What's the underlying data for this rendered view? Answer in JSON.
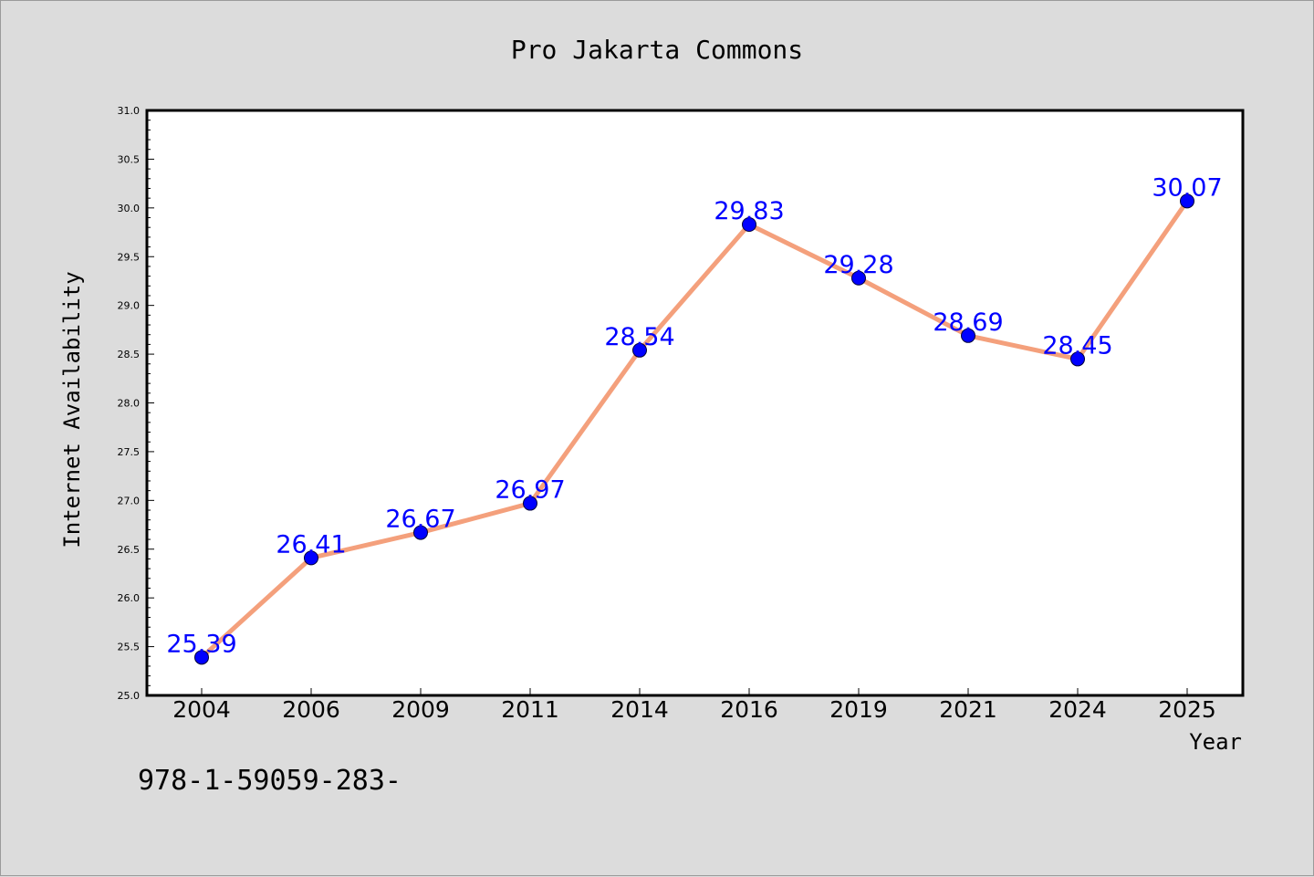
{
  "chart_data": {
    "type": "line",
    "title": "Pro Jakarta Commons",
    "xlabel": "Year",
    "ylabel": "Internet Availability",
    "categories": [
      "2004",
      "2006",
      "2009",
      "2011",
      "2014",
      "2016",
      "2019",
      "2021",
      "2024",
      "2025"
    ],
    "values": [
      25.39,
      26.41,
      26.67,
      26.97,
      28.54,
      29.83,
      29.28,
      28.69,
      28.45,
      30.07
    ],
    "data_labels": [
      "25.39",
      "26.41",
      "26.67",
      "26.97",
      "28.54",
      "29.83",
      "29.28",
      "28.69",
      "28.45",
      "30.07"
    ],
    "ylim": [
      25.0,
      31.0
    ],
    "yticks": [
      "25.0",
      "25.5",
      "26.0",
      "26.5",
      "27.0",
      "27.5",
      "28.0",
      "28.5",
      "29.0",
      "29.5",
      "30.0",
      "30.5",
      "31.0"
    ],
    "grid": false,
    "legend": "none",
    "line_color": "#f4a07c",
    "marker_color": "#0000ff",
    "label_color": "#0000ff",
    "annotation": "978-1-59059-283-"
  }
}
